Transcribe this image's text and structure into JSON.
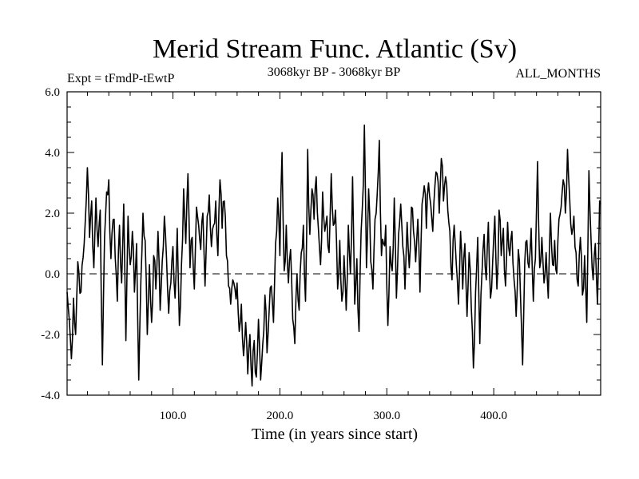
{
  "chart_data": {
    "type": "line",
    "title": "Merid Stream Func. Atlantic (Sv)",
    "subtitle_left": "Expt = tFmdP-tEwtP",
    "subtitle_center": "3068kyr BP - 3068kyr BP",
    "subtitle_right": "ALL_MONTHS",
    "xlabel": "Time (in years since start)",
    "ylabel": "",
    "xlim": [
      1,
      500
    ],
    "ylim": [
      -4,
      6
    ],
    "x_ticks": [
      100,
      200,
      300,
      400
    ],
    "x_tick_labels": [
      "100.0",
      "200.0",
      "300.0",
      "400.0"
    ],
    "y_ticks": [
      -4,
      -2,
      0,
      2,
      4,
      6
    ],
    "y_tick_labels": [
      "-4.0",
      "-2.0",
      "0.0",
      "2.0",
      "4.0",
      "6.0"
    ],
    "reference_line": 0,
    "series": [
      {
        "name": "Merid Stream Func. Atlantic",
        "color": "#000000",
        "anchors": [
          [
            1,
            -0.6
          ],
          [
            3,
            -1.5
          ],
          [
            5,
            -2.8
          ],
          [
            7,
            -0.8
          ],
          [
            9,
            -2.0
          ],
          [
            11,
            0.4
          ],
          [
            14,
            -0.6
          ],
          [
            17,
            1.0
          ],
          [
            20,
            3.5
          ],
          [
            22,
            1.2
          ],
          [
            24,
            2.4
          ],
          [
            26,
            0.2
          ],
          [
            28,
            2.5
          ],
          [
            30,
            0.9
          ],
          [
            32,
            2.1
          ],
          [
            34,
            -3.0
          ],
          [
            36,
            1.2
          ],
          [
            38,
            2.7
          ],
          [
            40,
            3.1
          ],
          [
            42,
            0.5
          ],
          [
            45,
            1.8
          ],
          [
            48,
            -0.9
          ],
          [
            50,
            1.6
          ],
          [
            52,
            -0.3
          ],
          [
            54,
            2.3
          ],
          [
            56,
            -2.2
          ],
          [
            58,
            1.9
          ],
          [
            60,
            0.3
          ],
          [
            62,
            1.4
          ],
          [
            64,
            -0.6
          ],
          [
            66,
            1.0
          ],
          [
            68,
            -3.5
          ],
          [
            70,
            -0.2
          ],
          [
            72,
            2.0
          ],
          [
            74,
            1.1
          ],
          [
            76,
            -2.0
          ],
          [
            78,
            0.3
          ],
          [
            80,
            -1.6
          ],
          [
            82,
            0.6
          ],
          [
            84,
            -0.5
          ],
          [
            86,
            1.4
          ],
          [
            88,
            -1.2
          ],
          [
            90,
            0.4
          ],
          [
            92,
            1.9
          ],
          [
            94,
            0.5
          ],
          [
            96,
            -1.3
          ],
          [
            98,
            -0.3
          ],
          [
            100,
            0.9
          ],
          [
            102,
            -0.8
          ],
          [
            104,
            1.5
          ],
          [
            106,
            -1.7
          ],
          [
            108,
            0.3
          ],
          [
            110,
            2.8
          ],
          [
            112,
            1.0
          ],
          [
            114,
            3.3
          ],
          [
            116,
            0.2
          ],
          [
            118,
            1.2
          ],
          [
            120,
            -0.5
          ],
          [
            122,
            2.2
          ],
          [
            124,
            1.6
          ],
          [
            126,
            0.8
          ],
          [
            128,
            2.0
          ],
          [
            130,
            -0.4
          ],
          [
            132,
            1.9
          ],
          [
            134,
            2.6
          ],
          [
            136,
            0.9
          ],
          [
            138,
            1.6
          ],
          [
            140,
            2.4
          ],
          [
            142,
            0.6
          ],
          [
            144,
            3.1
          ],
          [
            146,
            1.5
          ],
          [
            148,
            2.4
          ],
          [
            150,
            0.6
          ],
          [
            152,
            -0.4
          ],
          [
            154,
            -1.0
          ],
          [
            156,
            -0.2
          ],
          [
            158,
            -0.5
          ],
          [
            160,
            -0.3
          ],
          [
            162,
            -1.9
          ],
          [
            164,
            -1.0
          ],
          [
            166,
            -2.7
          ],
          [
            168,
            -1.6
          ],
          [
            170,
            -3.3
          ],
          [
            172,
            -2.0
          ],
          [
            174,
            -3.7
          ],
          [
            176,
            -2.2
          ],
          [
            178,
            -3.4
          ],
          [
            180,
            -1.5
          ],
          [
            182,
            -3.5
          ],
          [
            184,
            -2.3
          ],
          [
            186,
            -0.7
          ],
          [
            188,
            -2.6
          ],
          [
            190,
            -1.2
          ],
          [
            192,
            -0.4
          ],
          [
            194,
            -1.6
          ],
          [
            196,
            1.0
          ],
          [
            198,
            2.5
          ],
          [
            200,
            0.6
          ],
          [
            202,
            4.0
          ],
          [
            204,
            0.1
          ],
          [
            206,
            1.6
          ],
          [
            208,
            -0.3
          ],
          [
            210,
            0.8
          ],
          [
            212,
            -1.5
          ],
          [
            214,
            -2.3
          ],
          [
            216,
            0.0
          ],
          [
            218,
            -1.2
          ],
          [
            220,
            0.7
          ],
          [
            222,
            1.6
          ],
          [
            224,
            -0.9
          ],
          [
            226,
            4.1
          ],
          [
            228,
            1.3
          ],
          [
            230,
            2.8
          ],
          [
            232,
            1.8
          ],
          [
            234,
            3.2
          ],
          [
            236,
            1.5
          ],
          [
            238,
            0.3
          ],
          [
            240,
            2.7
          ],
          [
            242,
            1.4
          ],
          [
            244,
            1.9
          ],
          [
            246,
            0.7
          ],
          [
            248,
            3.3
          ],
          [
            250,
            1.6
          ],
          [
            252,
            2.1
          ],
          [
            254,
            -0.5
          ],
          [
            256,
            1.1
          ],
          [
            258,
            -0.9
          ],
          [
            260,
            0.6
          ],
          [
            262,
            -1.2
          ],
          [
            264,
            1.6
          ],
          [
            266,
            0.0
          ],
          [
            268,
            3.2
          ],
          [
            270,
            -1.0
          ],
          [
            272,
            0.5
          ],
          [
            274,
            -1.9
          ],
          [
            276,
            1.4
          ],
          [
            278,
            2.9
          ],
          [
            279,
            4.9
          ],
          [
            281,
            0.2
          ],
          [
            283,
            2.8
          ],
          [
            285,
            0.4
          ],
          [
            287,
            -0.5
          ],
          [
            289,
            1.8
          ],
          [
            291,
            2.6
          ],
          [
            293,
            4.4
          ],
          [
            295,
            0.6
          ],
          [
            297,
            1.0
          ],
          [
            299,
            1.6
          ],
          [
            301,
            -1.7
          ],
          [
            303,
            0.9
          ],
          [
            305,
            0.1
          ],
          [
            307,
            2.5
          ],
          [
            309,
            -0.8
          ],
          [
            311,
            1.3
          ],
          [
            313,
            2.3
          ],
          [
            315,
            0.9
          ],
          [
            317,
            -0.5
          ],
          [
            319,
            1.7
          ],
          [
            321,
            0.2
          ],
          [
            323,
            2.2
          ],
          [
            325,
            1.4
          ],
          [
            327,
            0.4
          ],
          [
            329,
            1.8
          ],
          [
            331,
            -0.6
          ],
          [
            333,
            2.3
          ],
          [
            335,
            2.9
          ],
          [
            337,
            1.5
          ],
          [
            339,
            3.0
          ],
          [
            341,
            2.3
          ],
          [
            343,
            1.4
          ],
          [
            345,
            2.9
          ],
          [
            347,
            3.3
          ],
          [
            349,
            2.0
          ],
          [
            351,
            3.8
          ],
          [
            353,
            2.4
          ],
          [
            355,
            3.2
          ],
          [
            357,
            2.1
          ],
          [
            359,
            1.4
          ],
          [
            361,
            -0.2
          ],
          [
            363,
            1.6
          ],
          [
            365,
            0.3
          ],
          [
            367,
            -1.0
          ],
          [
            369,
            1.4
          ],
          [
            371,
            -0.5
          ],
          [
            373,
            1.0
          ],
          [
            375,
            -1.4
          ],
          [
            377,
            0.7
          ],
          [
            379,
            -1.1
          ],
          [
            381,
            -3.1
          ],
          [
            383,
            -0.6
          ],
          [
            385,
            1.2
          ],
          [
            387,
            -2.3
          ],
          [
            389,
            0.0
          ],
          [
            391,
            1.3
          ],
          [
            393,
            -0.2
          ],
          [
            395,
            1.7
          ],
          [
            397,
            -0.8
          ],
          [
            399,
            0.4
          ],
          [
            401,
            1.9
          ],
          [
            403,
            -0.5
          ],
          [
            405,
            2.1
          ],
          [
            407,
            0.6
          ],
          [
            409,
            1.5
          ],
          [
            411,
            -0.4
          ],
          [
            413,
            1.7
          ],
          [
            415,
            0.6
          ],
          [
            417,
            1.4
          ],
          [
            419,
            -0.2
          ],
          [
            421,
            -1.4
          ],
          [
            423,
            0.8
          ],
          [
            425,
            -0.7
          ],
          [
            427,
            -3.0
          ],
          [
            429,
            0.4
          ],
          [
            431,
            1.1
          ],
          [
            433,
            0.2
          ],
          [
            435,
            1.5
          ],
          [
            437,
            -0.9
          ],
          [
            439,
            0.5
          ],
          [
            441,
            3.7
          ],
          [
            443,
            0.2
          ],
          [
            445,
            1.2
          ],
          [
            447,
            -0.3
          ],
          [
            449,
            0.7
          ],
          [
            451,
            -0.8
          ],
          [
            453,
            2.0
          ],
          [
            455,
            0.3
          ],
          [
            457,
            1.1
          ],
          [
            459,
            0.0
          ],
          [
            461,
            1.8
          ],
          [
            463,
            2.2
          ],
          [
            465,
            3.1
          ],
          [
            467,
            2.0
          ],
          [
            469,
            4.1
          ],
          [
            471,
            2.5
          ],
          [
            473,
            1.3
          ],
          [
            475,
            1.9
          ],
          [
            477,
            0.7
          ],
          [
            479,
            -0.4
          ],
          [
            481,
            1.2
          ],
          [
            483,
            -0.7
          ],
          [
            485,
            0.6
          ],
          [
            487,
            -1.6
          ],
          [
            489,
            3.4
          ],
          [
            491,
            1.1
          ],
          [
            493,
            -0.2
          ],
          [
            495,
            1.0
          ],
          [
            497,
            -1.0
          ],
          [
            499,
            2.4
          ],
          [
            500,
            2.3
          ]
        ]
      }
    ]
  }
}
